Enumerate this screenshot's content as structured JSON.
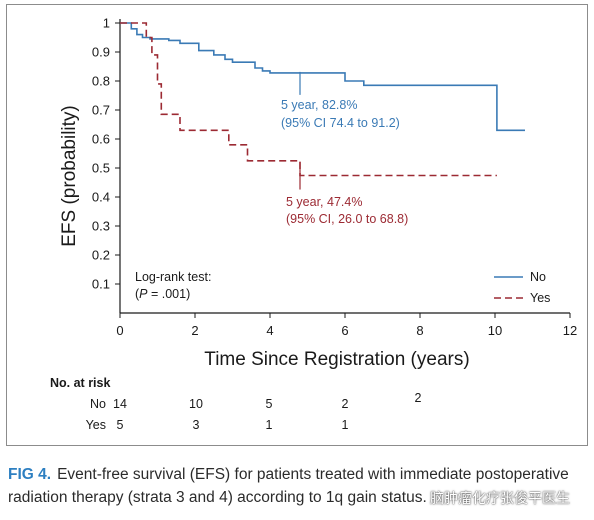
{
  "figure": {
    "label": "FIG 4.",
    "caption": "Event-free survival (EFS) for patients treated with immediate postoperative radiation therapy (strata 3 and 4) according to 1q gain status."
  },
  "watermark": "脑肿瘤化疗张俊平医生",
  "chart_data": {
    "type": "line",
    "xlabel": "Time Since Registration (years)",
    "ylabel": "EFS (probability)",
    "xlim": [
      0,
      12
    ],
    "ylim": [
      0,
      1
    ],
    "xticks": [
      0,
      2,
      4,
      6,
      8,
      10,
      12
    ],
    "yticks": [
      0.1,
      0.2,
      0.3,
      0.4,
      0.5,
      0.6,
      0.7,
      0.8,
      0.9,
      1
    ],
    "grid": false,
    "legend": {
      "placement": "bottom-right"
    },
    "series": [
      {
        "name": "No",
        "color": "#3a7ab5",
        "dash": "solid",
        "x": [
          0,
          0.3,
          0.45,
          0.6,
          0.8,
          1.3,
          1.6,
          2.1,
          2.5,
          2.8,
          3.0,
          3.6,
          3.8,
          4.0,
          4.8,
          6.0,
          6.5,
          8.5,
          10.05,
          10.8
        ],
        "y": [
          1,
          0.98,
          0.96,
          0.95,
          0.945,
          0.94,
          0.93,
          0.905,
          0.89,
          0.875,
          0.865,
          0.845,
          0.835,
          0.828,
          0.828,
          0.8,
          0.785,
          0.785,
          0.63,
          0.63
        ]
      },
      {
        "name": "Yes",
        "color": "#9c2a33",
        "dash": "dashed",
        "x": [
          0,
          0.7,
          0.85,
          1.0,
          1.1,
          1.6,
          2.9,
          3.4,
          4.8,
          10.05
        ],
        "y": [
          1,
          0.95,
          0.89,
          0.79,
          0.685,
          0.63,
          0.58,
          0.525,
          0.474,
          0.474
        ]
      }
    ],
    "annotations": {
      "no": {
        "line1": "5 year, 82.8%",
        "line2": "(95% CI 74.4 to 91.2)",
        "x": 4.8,
        "y": 0.828
      },
      "yes": {
        "line1": "5 year, 47.4%",
        "line2": "(95% CI, 26.0 to 68.8)",
        "x": 4.8,
        "y": 0.474
      }
    },
    "logrank": {
      "line1": "Log-rank test:",
      "line2_italic": "P",
      "line2_rest": " = .001)",
      "line2_open": "("
    },
    "risk_table": {
      "title": "No. at risk",
      "rows": [
        {
          "label": "No",
          "counts": [
            14,
            10,
            5,
            2,
            2
          ],
          "times": [
            0,
            2,
            4,
            6,
            8
          ]
        },
        {
          "label": "Yes",
          "counts": [
            5,
            3,
            1,
            1
          ],
          "times": [
            0,
            2,
            4,
            6
          ]
        }
      ]
    }
  }
}
